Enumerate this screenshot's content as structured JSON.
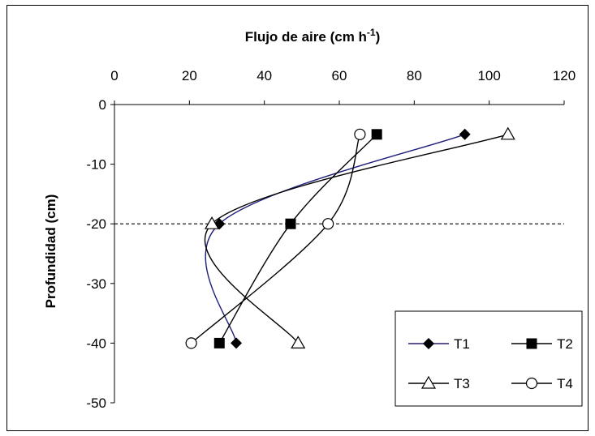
{
  "chart_data": {
    "type": "line",
    "title": "Flujo de aire (cm h",
    "title_sup": "-1",
    "title_close": ")",
    "xlabel": "",
    "ylabel": "Profundidad (cm)",
    "x_axis_position": "top",
    "xlim": [
      0,
      120
    ],
    "ylim": [
      -50,
      0
    ],
    "x_ticks": [
      0,
      20,
      40,
      60,
      80,
      100,
      120
    ],
    "y_ticks": [
      0,
      -10,
      -20,
      -30,
      -40,
      -50
    ],
    "x_tick_labels": [
      "0",
      "20",
      "40",
      "60",
      "80",
      "100",
      "120"
    ],
    "y_tick_labels": [
      "0",
      "-10",
      "-20",
      "-30",
      "-40",
      "-50"
    ],
    "reference_line": {
      "y": -20,
      "style": "dashed"
    },
    "grid": false,
    "legend_position": "bottom-right",
    "series": [
      {
        "name": "T1",
        "marker": "diamond-filled",
        "color": "#1f1f7a",
        "points": [
          {
            "x": 93.5,
            "y": -5
          },
          {
            "x": 28,
            "y": -20
          },
          {
            "x": 32.5,
            "y": -40
          }
        ]
      },
      {
        "name": "T2",
        "marker": "square-filled",
        "color": "#000000",
        "points": [
          {
            "x": 70,
            "y": -5
          },
          {
            "x": 47,
            "y": -20
          },
          {
            "x": 28,
            "y": -40
          }
        ]
      },
      {
        "name": "T3",
        "marker": "triangle-open",
        "color": "#000000",
        "points": [
          {
            "x": 105,
            "y": -5
          },
          {
            "x": 26,
            "y": -20
          },
          {
            "x": 49,
            "y": -40
          }
        ]
      },
      {
        "name": "T4",
        "marker": "circle-open",
        "color": "#000000",
        "points": [
          {
            "x": 65.5,
            "y": -5
          },
          {
            "x": 57,
            "y": -20
          },
          {
            "x": 20.5,
            "y": -40
          }
        ]
      }
    ]
  }
}
